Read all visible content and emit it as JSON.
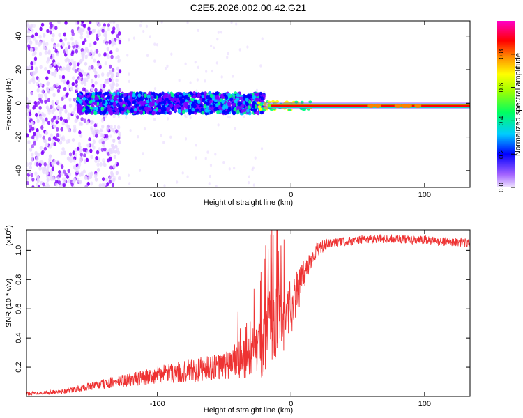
{
  "title": "C2E5.2026.002.00.42.G21",
  "chart_data": [
    {
      "type": "heatmap",
      "title": "C2E5.2026.002.00.42.G21",
      "xlabel": "Height of straight line (km)",
      "ylabel": "Frequency (Hz)",
      "xlim": [
        -198,
        134
      ],
      "ylim": [
        -50,
        49
      ],
      "xticks": [
        -100,
        0,
        100
      ],
      "xtick_labels": [
        "-100",
        "0",
        "100"
      ],
      "yticks": [
        -40,
        -20,
        0,
        20,
        40
      ],
      "ytick_labels": [
        "-40",
        "-20",
        "0",
        "20",
        "40"
      ],
      "colorbar": {
        "label": "Normalized spectral amplitude",
        "range": [
          0,
          1
        ],
        "ticks": [
          0,
          0.2,
          0.4,
          0.6,
          0.8
        ],
        "tick_labels": [
          "0.0",
          "0.2",
          "0.4",
          "0.6",
          "0.8"
        ],
        "colormap": [
          "#e8d8ff",
          "#8000ff",
          "#0000ff",
          "#00c8ff",
          "#00ff80",
          "#80ff00",
          "#ffff00",
          "#ff8000",
          "#ff0000",
          "#ff00c0"
        ]
      },
      "features": {
        "scatter_region_x": [
          -198,
          -140
        ],
        "band_region_x": [
          -160,
          -20
        ],
        "band_halfwidth_hz": 6,
        "line_region_x": [
          -20,
          134
        ],
        "line_freq_hz": -1.5
      }
    },
    {
      "type": "line",
      "xlabel": "Height of straight line (km)",
      "ylabel": "SNR (10 * v/v)",
      "y_multiplier": "(x10",
      "y_multiplier_exp": "4",
      "y_multiplier_close": ")",
      "xlim": [
        -198,
        134
      ],
      "ylim": [
        0.0,
        1.14
      ],
      "xticks": [
        -100,
        0,
        100
      ],
      "xtick_labels": [
        "-100",
        "0",
        "100"
      ],
      "yticks": [
        0.2,
        0.4,
        0.6,
        0.8,
        1.0
      ],
      "ytick_labels": [
        "0.2",
        "0.4",
        "0.6",
        "0.8",
        "1.0"
      ],
      "color": "#ee3333",
      "envelope": {
        "x": [
          -198,
          -175,
          -160,
          -150,
          -130,
          -110,
          -90,
          -70,
          -50,
          -40,
          -30,
          -25,
          -20,
          -15,
          -10,
          -5,
          0,
          5,
          10,
          15,
          20,
          30,
          40,
          50,
          60,
          70,
          80,
          90,
          100,
          110,
          120,
          134
        ],
        "y": [
          0.02,
          0.03,
          0.05,
          0.07,
          0.1,
          0.13,
          0.16,
          0.18,
          0.21,
          0.24,
          0.28,
          0.32,
          0.4,
          0.46,
          0.52,
          0.57,
          0.62,
          0.72,
          0.84,
          0.94,
          1.01,
          1.05,
          1.06,
          1.07,
          1.08,
          1.08,
          1.08,
          1.07,
          1.07,
          1.06,
          1.06,
          1.05
        ]
      },
      "noise": {
        "x": [
          -198,
          -160,
          -100,
          -50,
          -30,
          -20,
          -10,
          0,
          10,
          20,
          30,
          134
        ],
        "y": [
          0.01,
          0.02,
          0.06,
          0.1,
          0.16,
          0.26,
          0.3,
          0.2,
          0.1,
          0.05,
          0.03,
          0.03
        ]
      }
    }
  ]
}
